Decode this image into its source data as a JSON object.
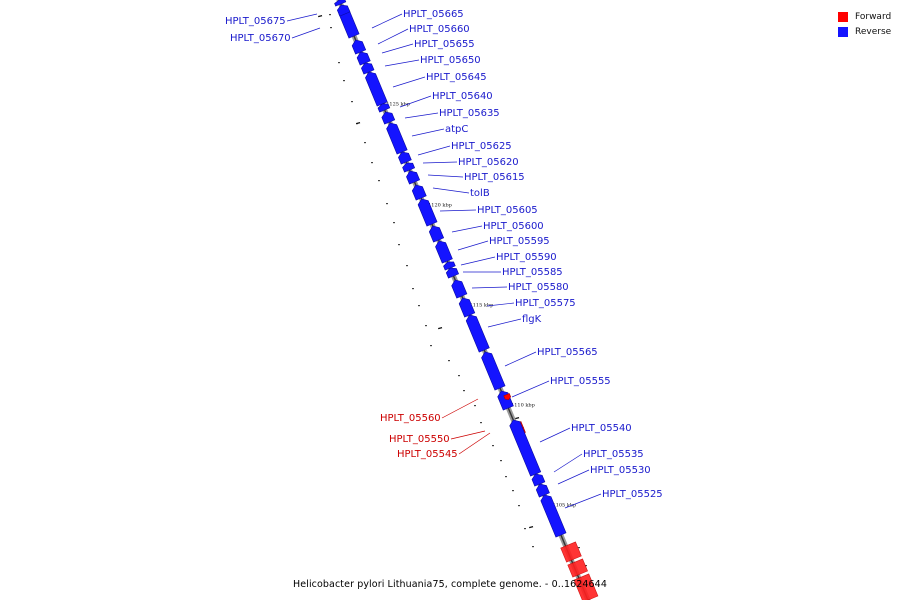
{
  "title": "Helicobacter pylori Lithuania75, complete genome. - 0..1624644",
  "legend": {
    "forward_label": "Forward",
    "reverse_label": "Reverse",
    "forward_color": "#ff0000",
    "reverse_color": "#1414ff"
  },
  "ticks": [
    {
      "label": "1125 kbp",
      "kbp": 1125
    },
    {
      "label": "1120 kbp",
      "kbp": 1120
    },
    {
      "label": "1115 kbp",
      "kbp": 1115
    },
    {
      "label": "1110 kbp",
      "kbp": 1110
    },
    {
      "label": "1105 kbp",
      "kbp": 1105
    }
  ],
  "genes": [
    {
      "name": "HPLT_05675",
      "strand": "reverse"
    },
    {
      "name": "HPLT_05670",
      "strand": "reverse"
    },
    {
      "name": "HPLT_05665",
      "strand": "reverse"
    },
    {
      "name": "HPLT_05660",
      "strand": "reverse"
    },
    {
      "name": "HPLT_05655",
      "strand": "reverse"
    },
    {
      "name": "HPLT_05650",
      "strand": "reverse"
    },
    {
      "name": "HPLT_05645",
      "strand": "reverse"
    },
    {
      "name": "HPLT_05640",
      "strand": "reverse"
    },
    {
      "name": "HPLT_05635",
      "strand": "reverse"
    },
    {
      "name": "atpC",
      "strand": "reverse"
    },
    {
      "name": "HPLT_05625",
      "strand": "reverse"
    },
    {
      "name": "HPLT_05620",
      "strand": "reverse"
    },
    {
      "name": "HPLT_05615",
      "strand": "reverse"
    },
    {
      "name": "tolB",
      "strand": "reverse"
    },
    {
      "name": "HPLT_05605",
      "strand": "reverse"
    },
    {
      "name": "HPLT_05600",
      "strand": "reverse"
    },
    {
      "name": "HPLT_05595",
      "strand": "reverse"
    },
    {
      "name": "HPLT_05590",
      "strand": "reverse"
    },
    {
      "name": "HPLT_05585",
      "strand": "reverse"
    },
    {
      "name": "HPLT_05580",
      "strand": "reverse"
    },
    {
      "name": "HPLT_05575",
      "strand": "reverse"
    },
    {
      "name": "flgK",
      "strand": "reverse"
    },
    {
      "name": "HPLT_05565",
      "strand": "reverse"
    },
    {
      "name": "HPLT_05555",
      "strand": "reverse"
    },
    {
      "name": "HPLT_05560",
      "strand": "forward"
    },
    {
      "name": "HPLT_05550",
      "strand": "forward"
    },
    {
      "name": "HPLT_05545",
      "strand": "forward"
    },
    {
      "name": "HPLT_05540",
      "strand": "reverse"
    },
    {
      "name": "HPLT_05535",
      "strand": "reverse"
    },
    {
      "name": "HPLT_05530",
      "strand": "reverse"
    },
    {
      "name": "HPLT_05525",
      "strand": "reverse"
    }
  ]
}
